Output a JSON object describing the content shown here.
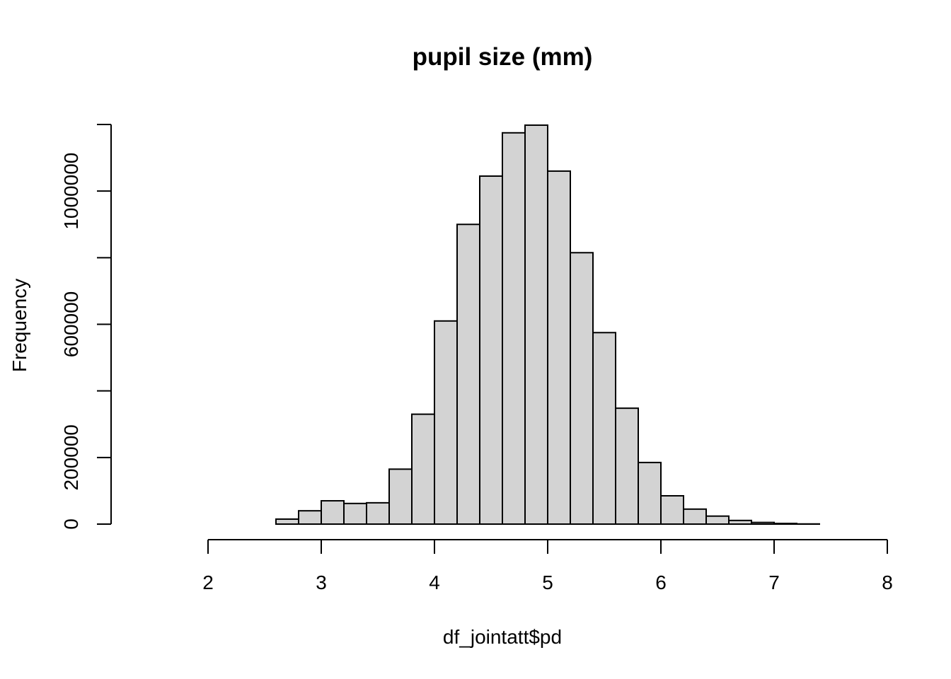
{
  "chart_data": {
    "type": "bar",
    "title": "pupil size (mm)",
    "xlabel": "df_jointatt$pd",
    "ylabel": "Frequency",
    "x_ticks": [
      2,
      3,
      4,
      5,
      6,
      7,
      8
    ],
    "x_tick_labels": [
      "2",
      "3",
      "4",
      "5",
      "6",
      "7",
      "8"
    ],
    "y_ticks": [
      0,
      200000,
      400000,
      600000,
      800000,
      1000000,
      1200000
    ],
    "y_tick_labels": [
      "0",
      "200000",
      "",
      "600000",
      "",
      "1000000",
      ""
    ],
    "xlim": [
      1.4,
      7.8
    ],
    "ylim": [
      0,
      1200000
    ],
    "bin_width": 0.2,
    "bin_start": 1.4,
    "values": [
      0,
      0,
      0,
      0,
      0,
      0,
      15000,
      40000,
      70000,
      62000,
      64000,
      165000,
      330000,
      610000,
      900000,
      1045000,
      1175000,
      1198000,
      1060000,
      815000,
      575000,
      348000,
      185000,
      85000,
      45000,
      24000,
      11000,
      5000,
      2000,
      500,
      0,
      0
    ],
    "bar_color": "#d3d3d3",
    "grid": false,
    "legend": "none"
  }
}
